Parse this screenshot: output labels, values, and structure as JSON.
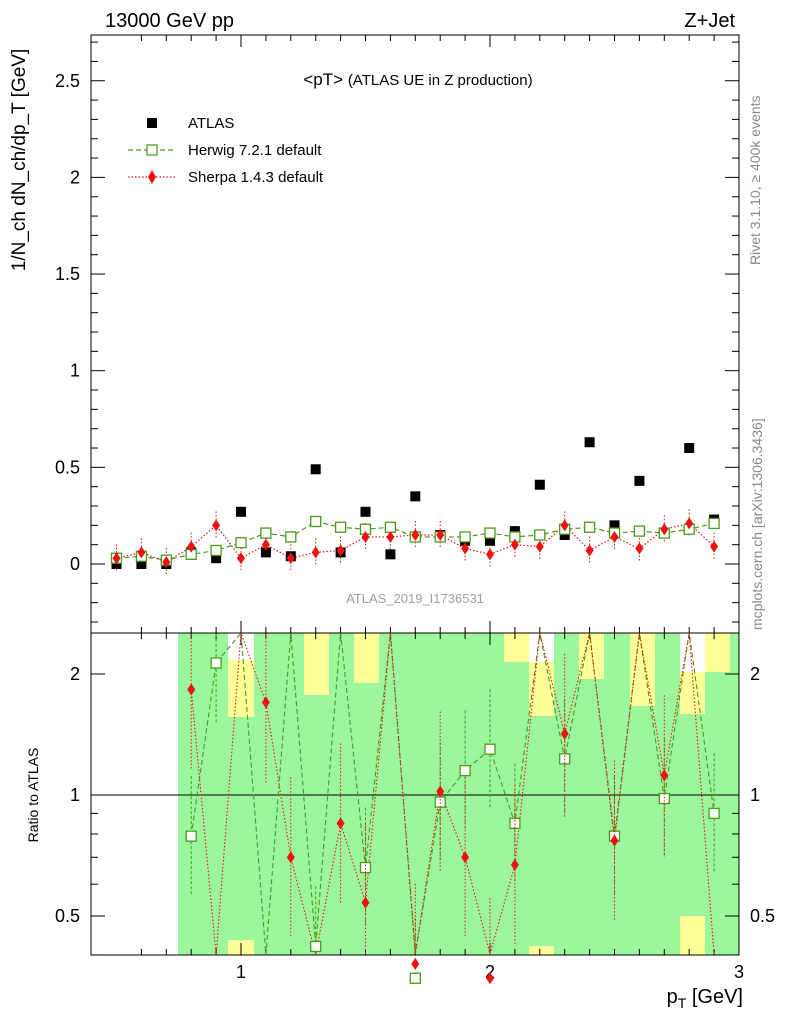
{
  "header": {
    "left": "13000 GeV pp",
    "right": "Z+Jet"
  },
  "side_labels": {
    "rivet": "Rivet 3.1.10, ≥ 400k events",
    "mcplots": "mcplots.cern.ch [arXiv:1306.3436]"
  },
  "top_panel": {
    "title_main": "<pT>",
    "title_sub": "(ATLAS UE in Z production)",
    "watermark": "ATLAS_2019_I1736531"
  },
  "legend": [
    {
      "label": "ATLAS",
      "color": "#000000",
      "marker": "square-filled"
    },
    {
      "label": "Herwig 7.2.1 default",
      "color": "#4a9a1a",
      "marker": "square-open",
      "line": "dashed"
    },
    {
      "label": "Sherpa 1.4.3 default",
      "color": "#ee1111",
      "marker": "diamond",
      "line": "dotted"
    }
  ],
  "axes": {
    "x_label_main": "p",
    "x_label_sub": "T",
    "x_label_unit": " [GeV]",
    "y_top_label": "1/N_ch dN_ch/dp_T [GeV]",
    "y_bottom_label": "Ratio to ATLAS",
    "x_ticks": [
      "1",
      "2",
      "3"
    ],
    "y_top_ticks": [
      "0",
      "0.5",
      "1",
      "1.5",
      "2",
      "2.5"
    ],
    "y_bottom_ticks": [
      "0.5",
      "1",
      "2"
    ]
  },
  "chart_data": {
    "type": "scatter",
    "xlabel": "p_T [GeV]",
    "ylabel": "1/N_ch dN_ch/dp_T [GeV]",
    "xlim": [
      0.6,
      3.0
    ],
    "ylim": [
      -0.32,
      2.75
    ],
    "ratio_ylabel": "Ratio to ATLAS",
    "ratio_ylim": [
      0.34,
      2.35
    ],
    "x": [
      0.5,
      0.6,
      0.7,
      0.8,
      0.9,
      1.0,
      1.1,
      1.2,
      1.3,
      1.4,
      1.5,
      1.6,
      1.7,
      1.8,
      1.9,
      2.0,
      2.1,
      2.2,
      2.3,
      2.4,
      2.5,
      2.6,
      2.7,
      2.8,
      2.9
    ],
    "series": [
      {
        "name": "ATLAS",
        "values": [
          0.0,
          0.0,
          0.0,
          0.06,
          0.03,
          0.27,
          0.06,
          0.04,
          0.49,
          0.06,
          0.27,
          0.05,
          0.35,
          0.15,
          0.12,
          0.12,
          0.17,
          0.41,
          0.15,
          0.63,
          0.2,
          0.43,
          0.16,
          0.6,
          0.23
        ]
      },
      {
        "name": "Herwig 7.2.1 default",
        "values": [
          0.03,
          0.04,
          0.02,
          0.05,
          0.07,
          0.11,
          0.16,
          0.14,
          0.22,
          0.19,
          0.18,
          0.19,
          0.14,
          0.14,
          0.14,
          0.16,
          0.14,
          0.15,
          0.18,
          0.19,
          0.16,
          0.17,
          0.16,
          0.18,
          0.21
        ],
        "ratio": [
          null,
          null,
          null,
          0.79,
          2.13,
          null,
          null,
          null,
          0.42,
          null,
          0.66,
          null,
          0.35,
          0.96,
          1.15,
          1.3,
          0.85,
          null,
          1.23,
          null,
          0.79,
          null,
          0.98,
          null,
          0.9
        ]
      },
      {
        "name": "Sherpa 1.4.3 default",
        "values": [
          0.03,
          0.06,
          0.01,
          0.09,
          0.2,
          0.03,
          0.1,
          0.03,
          0.06,
          0.07,
          0.14,
          0.14,
          0.15,
          0.15,
          0.08,
          0.05,
          0.1,
          0.09,
          0.2,
          0.07,
          0.14,
          0.08,
          0.18,
          0.21,
          0.09
        ],
        "ratio": [
          null,
          null,
          null,
          1.83,
          null,
          null,
          1.7,
          0.7,
          null,
          0.85,
          0.54,
          null,
          0.38,
          1.02,
          0.7,
          0.35,
          0.67,
          null,
          1.42,
          null,
          0.77,
          null,
          1.12,
          null,
          null
        ]
      }
    ]
  }
}
